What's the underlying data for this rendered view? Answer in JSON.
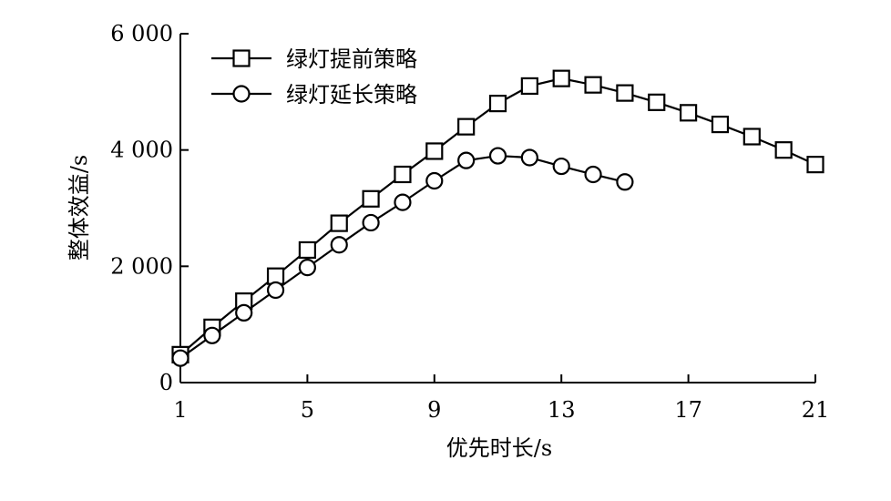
{
  "chart_data": {
    "type": "line",
    "xlabel": "优先时长/s",
    "ylabel": "整体效益/s",
    "xlim": [
      1,
      21
    ],
    "ylim": [
      0,
      6000
    ],
    "x_ticks": [
      1,
      5,
      9,
      13,
      17,
      21
    ],
    "x_tick_labels": [
      "1",
      "5",
      "9",
      "13",
      "17",
      "21"
    ],
    "y_ticks": [
      0,
      2000,
      4000,
      6000
    ],
    "y_tick_labels": [
      "0",
      "2 000",
      "4 000",
      "6 000"
    ],
    "grid": false,
    "legend_position": "top-left",
    "series": [
      {
        "name": "绿灯提前策略",
        "marker": "square",
        "x": [
          1,
          2,
          3,
          4,
          5,
          6,
          7,
          8,
          9,
          10,
          11,
          12,
          13,
          14,
          15,
          16,
          17,
          18,
          19,
          20,
          21
        ],
        "values": [
          480,
          950,
          1400,
          1830,
          2280,
          2740,
          3160,
          3580,
          3980,
          4400,
          4800,
          5100,
          5230,
          5120,
          4980,
          4820,
          4640,
          4440,
          4230,
          4000,
          3750
        ]
      },
      {
        "name": "绿灯延长策略",
        "marker": "circle",
        "x": [
          1,
          2,
          3,
          4,
          5,
          6,
          7,
          8,
          9,
          10,
          11,
          12,
          13,
          14,
          15
        ],
        "values": [
          420,
          810,
          1200,
          1590,
          1980,
          2370,
          2750,
          3100,
          3470,
          3820,
          3900,
          3870,
          3720,
          3580,
          3450
        ]
      }
    ]
  }
}
